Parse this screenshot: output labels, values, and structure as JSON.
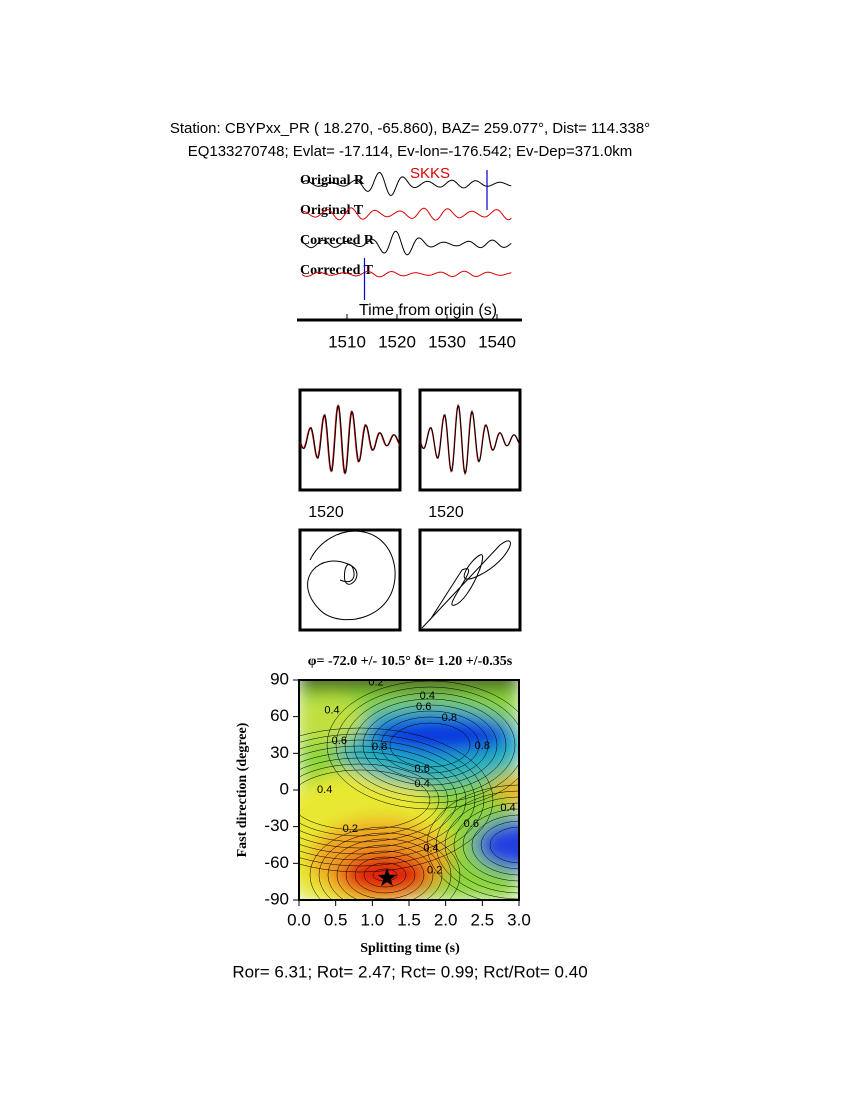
{
  "header": {
    "station": "Station: CBYPxx_PR (  18.270,  -65.860), BAZ=  259.077°, Dist=  114.338°",
    "event": "EQ133270748; Evlat= -17.114, Ev-lon=-176.542; Ev-Dep=371.0km"
  },
  "waveform_panel": {
    "phase": "SKKS",
    "traces": [
      "Original R",
      "Original T",
      "Corrected R",
      "Corrected T"
    ],
    "xlabel": "Time from origin (s)",
    "xlim": [
      1500,
      1545
    ],
    "xticks": [
      1510,
      1520,
      1530,
      1540
    ],
    "window": [
      1513.5,
      1538
    ]
  },
  "particle_panel": {
    "tick_labels": [
      "1520",
      "1520"
    ]
  },
  "chart_data": {
    "type": "contour",
    "title": "φ= -72.0 +/- 10.5° δt= 1.20 +/-0.35s",
    "x_label": "Splitting time (s)",
    "y_label": "Fast direction (degree)",
    "xlim": [
      0,
      3
    ],
    "ylim": [
      -90,
      90
    ],
    "xticks": [
      {
        "value": 0,
        "label": "0.0"
      },
      {
        "value": 0.5,
        "label": "0.5"
      },
      {
        "value": 1,
        "label": "1.0"
      },
      {
        "value": 1.5,
        "label": "1.5"
      },
      {
        "value": 2,
        "label": "2.0"
      },
      {
        "value": 2.5,
        "label": "2.5"
      },
      {
        "value": 3,
        "label": "3.0"
      }
    ],
    "yticks": [
      -90,
      -60,
      -30,
      0,
      30,
      60,
      90
    ],
    "best": {
      "x": 1.2,
      "y": -72
    },
    "contour_labels": [
      {
        "x": 1.05,
        "y": 88,
        "value": 0.2
      },
      {
        "x": 1.75,
        "y": 77,
        "value": 0.4
      },
      {
        "x": 1.7,
        "y": 68,
        "value": 0.6
      },
      {
        "x": 2.05,
        "y": 59,
        "value": 0.8
      },
      {
        "x": 0.45,
        "y": 65,
        "value": 0.4
      },
      {
        "x": 0.55,
        "y": 40,
        "value": 0.6
      },
      {
        "x": 1.1,
        "y": 35,
        "value": 0.8
      },
      {
        "x": 2.5,
        "y": 36,
        "value": 0.8
      },
      {
        "x": 1.68,
        "y": 17,
        "value": 0.6
      },
      {
        "x": 1.68,
        "y": 5,
        "value": 0.4
      },
      {
        "x": 0.35,
        "y": 0,
        "value": 0.4
      },
      {
        "x": 2.85,
        "y": -15,
        "value": 0.4
      },
      {
        "x": 2.35,
        "y": -28,
        "value": 0.6
      },
      {
        "x": 0.7,
        "y": -32,
        "value": 0.2
      },
      {
        "x": 1.8,
        "y": -48,
        "value": 0.4
      },
      {
        "x": 1.85,
        "y": -66,
        "value": 0.2
      }
    ]
  },
  "footer": "Ror= 6.31; Rot= 2.47; Rct= 0.99; Rct/Rot= 0.40"
}
